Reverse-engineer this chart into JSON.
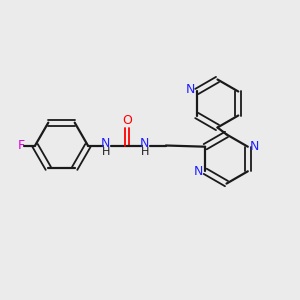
{
  "background_color": "#ebebeb",
  "bond_color": "#1a1a1a",
  "nitrogen_color": "#2020ff",
  "oxygen_color": "#ff0000",
  "fluorine_color": "#dd00dd",
  "figsize": [
    3.0,
    3.0
  ],
  "dpi": 100,
  "xlim": [
    0,
    10
  ],
  "ylim": [
    0,
    10
  ]
}
